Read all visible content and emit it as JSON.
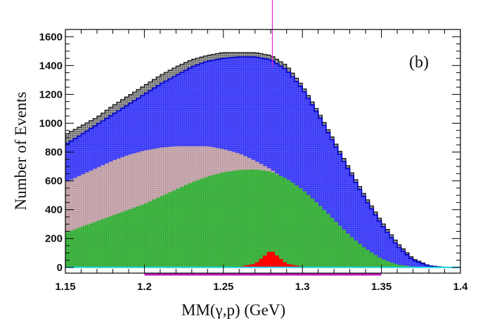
{
  "chart_data": {
    "type": "bar",
    "panel_label": "(b)",
    "xlabel": "MM(γ,p)   (GeV)",
    "ylabel": "Number of  Events",
    "xlim": [
      1.15,
      1.4
    ],
    "ylim": [
      -40,
      1650
    ],
    "x_ticks": [
      1.15,
      1.2,
      1.25,
      1.3,
      1.35,
      1.4
    ],
    "x_tick_labels": [
      "1.15",
      "1.2",
      "1.25",
      "1.3",
      "1.35",
      "1.4"
    ],
    "y_ticks": [
      0,
      200,
      400,
      600,
      800,
      1000,
      1200,
      1400,
      1600
    ],
    "y_tick_labels": [
      "0",
      "200",
      "400",
      "600",
      "800",
      "1000",
      "1200",
      "1400",
      "1600"
    ],
    "bin_width": 0.0025,
    "x_start": 1.15,
    "vertical_marker_x": 1.281,
    "horizontal_marker_range": [
      1.2,
      1.35
    ],
    "series": [
      {
        "color": "#9a9a9a",
        "x": [
          1.15,
          1.16,
          1.17,
          1.18,
          1.19,
          1.2,
          1.21,
          1.22,
          1.23,
          1.24,
          1.25,
          1.26,
          1.27,
          1.28,
          1.29,
          1.3,
          1.31,
          1.32,
          1.33,
          1.34,
          1.35,
          1.36,
          1.37,
          1.38,
          1.39,
          1.4
        ],
        "values": [
          920,
          980,
          1040,
          1120,
          1190,
          1260,
          1330,
          1390,
          1440,
          1470,
          1490,
          1490,
          1490,
          1470,
          1400,
          1260,
          1080,
          880,
          680,
          490,
          320,
          170,
          60,
          12,
          0,
          0
        ]
      },
      {
        "color": "#4040ff",
        "x": [
          1.15,
          1.16,
          1.17,
          1.18,
          1.19,
          1.2,
          1.21,
          1.22,
          1.23,
          1.24,
          1.25,
          1.26,
          1.27,
          1.28,
          1.29,
          1.3,
          1.31,
          1.32,
          1.33,
          1.34,
          1.35,
          1.36,
          1.37,
          1.38,
          1.39,
          1.4
        ],
        "values": [
          850,
          920,
          990,
          1060,
          1130,
          1200,
          1270,
          1330,
          1390,
          1430,
          1450,
          1460,
          1460,
          1440,
          1370,
          1240,
          1060,
          860,
          660,
          470,
          300,
          150,
          50,
          10,
          0,
          0
        ]
      },
      {
        "color": "#c8aab0",
        "x": [
          1.15,
          1.16,
          1.17,
          1.18,
          1.19,
          1.2,
          1.21,
          1.22,
          1.23,
          1.24,
          1.25,
          1.26,
          1.27,
          1.28,
          1.29,
          1.3,
          1.31,
          1.32,
          1.33,
          1.34,
          1.35,
          1.36,
          1.37,
          1.38,
          1.39,
          1.4
        ],
        "values": [
          590,
          640,
          690,
          740,
          780,
          810,
          830,
          840,
          840,
          840,
          820,
          790,
          740,
          680,
          600,
          510,
          410,
          300,
          200,
          110,
          50,
          15,
          3,
          0,
          0,
          0
        ]
      },
      {
        "color": "#3fb640",
        "x": [
          1.15,
          1.16,
          1.17,
          1.18,
          1.19,
          1.2,
          1.21,
          1.22,
          1.23,
          1.24,
          1.25,
          1.26,
          1.27,
          1.28,
          1.29,
          1.3,
          1.31,
          1.32,
          1.33,
          1.34,
          1.35,
          1.36,
          1.37,
          1.38,
          1.39,
          1.4
        ],
        "values": [
          240,
          280,
          320,
          360,
          400,
          440,
          490,
          540,
          590,
          630,
          660,
          675,
          680,
          665,
          615,
          540,
          440,
          330,
          220,
          130,
          60,
          20,
          5,
          0,
          0,
          0
        ]
      },
      {
        "color": "#ff0000",
        "x": [
          1.25,
          1.26,
          1.27,
          1.275,
          1.28,
          1.285,
          1.29,
          1.3,
          1.31
        ],
        "values": [
          0,
          5,
          25,
          70,
          120,
          70,
          25,
          5,
          0
        ]
      }
    ]
  }
}
